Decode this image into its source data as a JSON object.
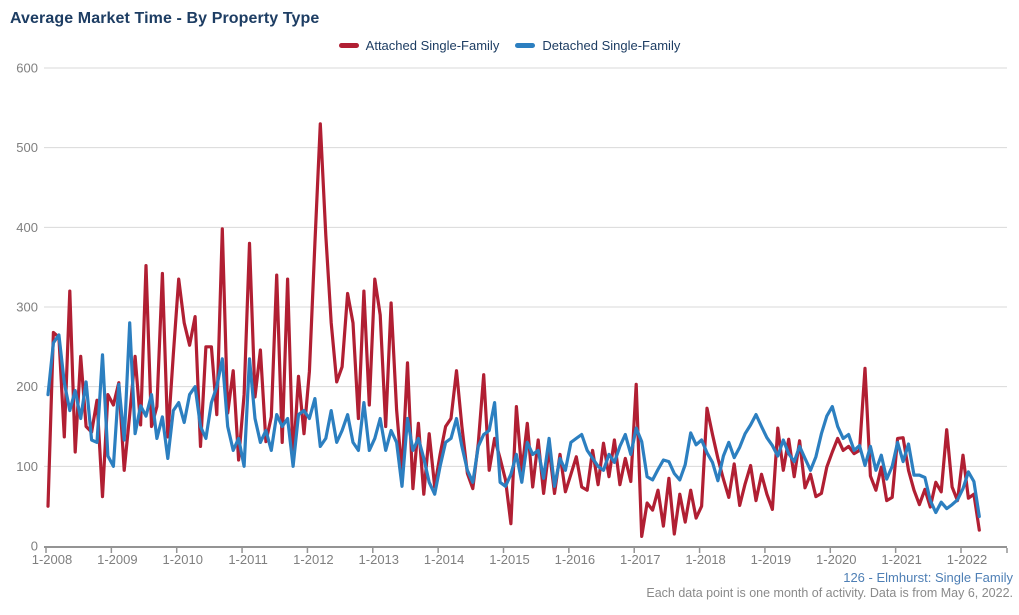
{
  "title": "Average Market Time - By Property Type",
  "legend": [
    {
      "label": "Attached Single-Family",
      "color": "#b11f33"
    },
    {
      "label": "Detached Single-Family",
      "color": "#2c7fc0"
    }
  ],
  "footer": {
    "link": "126 - Elmhurst: Single Family",
    "note": "Each data point is one month of activity. Data is from May 6, 2022."
  },
  "colors": {
    "title_text": "#1d3d63",
    "axis_text": "#7f7f7f",
    "gridline": "#d9d9d9",
    "axis_line": "#949494",
    "footer_link": "#4e7fb5",
    "footer_note": "#8a8a8a"
  },
  "chart_data": {
    "type": "line",
    "title": "Average Market Time - By Property Type",
    "xlabel": "",
    "ylabel": "",
    "ylim": [
      0,
      600
    ],
    "y_ticks": [
      0,
      100,
      200,
      300,
      400,
      500,
      600
    ],
    "x_tick_labels": [
      "1-2008",
      "1-2009",
      "1-2010",
      "1-2011",
      "1-2012",
      "1-2013",
      "1-2014",
      "1-2015",
      "1-2016",
      "1-2017",
      "1-2018",
      "1-2019",
      "1-2020",
      "1-2021",
      "1-2022"
    ],
    "x_start_month": "1-2008",
    "x_end_month": "4-2022",
    "months_per_point": 1,
    "grid": "horizontal",
    "legend_position": "top",
    "series": [
      {
        "name": "Attached Single-Family",
        "color": "#b11f33",
        "values": [
          50,
          268,
          262,
          137,
          320,
          118,
          238,
          150,
          143,
          183,
          62,
          190,
          177,
          205,
          95,
          165,
          238,
          152,
          352,
          150,
          175,
          342,
          137,
          240,
          335,
          280,
          252,
          288,
          125,
          250,
          250,
          165,
          398,
          167,
          220,
          108,
          190,
          380,
          187,
          246,
          131,
          162,
          340,
          130,
          335,
          106,
          213,
          141,
          219,
          380,
          530,
          390,
          280,
          206,
          225,
          317,
          280,
          160,
          320,
          177,
          335,
          290,
          150,
          305,
          171,
          91,
          230,
          72,
          154,
          65,
          141,
          74,
          115,
          150,
          160,
          220,
          150,
          91,
          72,
          129,
          215,
          95,
          135,
          110,
          83,
          28,
          175,
          93,
          154,
          74,
          133,
          66,
          123,
          66,
          115,
          68,
          90,
          112,
          74,
          70,
          120,
          77,
          129,
          87,
          133,
          77,
          110,
          81,
          203,
          12,
          54,
          45,
          70,
          25,
          85,
          15,
          65,
          30,
          70,
          35,
          50,
          173,
          140,
          110,
          84,
          61,
          103,
          51,
          78,
          101,
          57,
          90,
          65,
          46,
          148,
          95,
          134,
          87,
          132,
          73,
          90,
          62,
          66,
          99,
          118,
          135,
          120,
          125,
          116,
          120,
          223,
          88,
          70,
          99,
          57,
          61,
          135,
          136,
          95,
          70,
          52,
          71,
          49,
          80,
          68,
          146,
          74,
          57,
          114,
          60,
          65,
          20
        ]
      },
      {
        "name": "Detached Single-Family",
        "color": "#2c7fc0",
        "values": [
          190,
          255,
          265,
          205,
          170,
          195,
          160,
          206,
          133,
          130,
          240,
          113,
          100,
          203,
          133,
          280,
          141,
          176,
          163,
          190,
          135,
          162,
          110,
          170,
          180,
          155,
          190,
          200,
          150,
          135,
          180,
          200,
          235,
          150,
          120,
          135,
          100,
          235,
          160,
          130,
          145,
          120,
          165,
          150,
          160,
          100,
          165,
          170,
          160,
          185,
          125,
          135,
          170,
          130,
          145,
          165,
          130,
          120,
          180,
          120,
          135,
          160,
          120,
          145,
          130,
          75,
          160,
          120,
          135,
          110,
          80,
          65,
          100,
          130,
          135,
          160,
          125,
          95,
          80,
          125,
          140,
          145,
          180,
          80,
          75,
          90,
          115,
          80,
          130,
          115,
          120,
          85,
          135,
          75,
          110,
          95,
          130,
          135,
          140,
          120,
          110,
          100,
          95,
          115,
          105,
          125,
          140,
          115,
          148,
          131,
          87,
          83,
          96,
          108,
          106,
          91,
          83,
          102,
          142,
          127,
          133,
          117,
          105,
          82,
          113,
          130,
          111,
          124,
          141,
          152,
          165,
          150,
          136,
          126,
          113,
          133,
          116,
          106,
          125,
          110,
          95,
          112,
          141,
          163,
          175,
          150,
          135,
          140,
          120,
          126,
          101,
          125,
          95,
          114,
          84,
          100,
          130,
          106,
          128,
          89,
          89,
          86,
          57,
          42,
          55,
          47,
          52,
          58,
          72,
          93,
          81,
          37
        ]
      }
    ]
  }
}
